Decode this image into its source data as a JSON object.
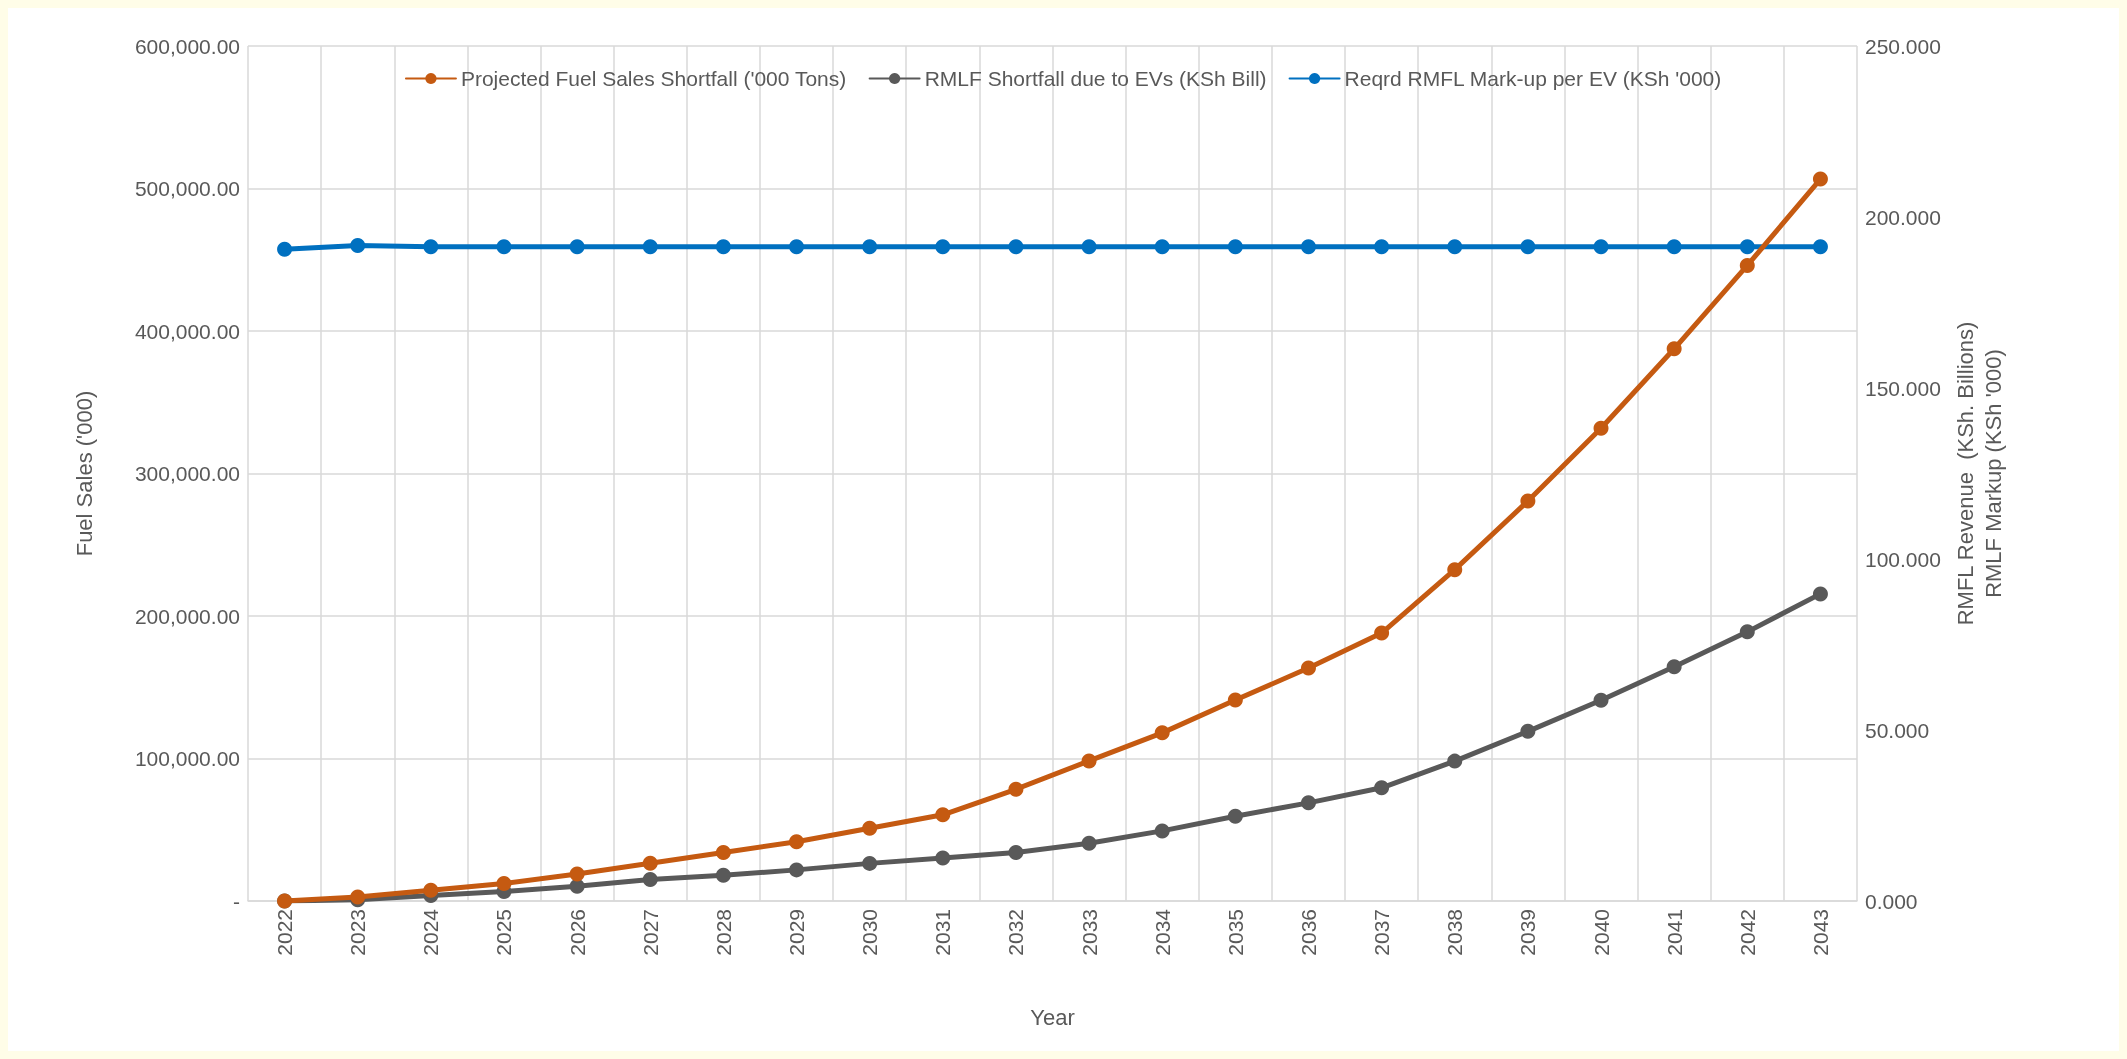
{
  "chart_data": {
    "type": "line",
    "xlabel": "Year",
    "ylabel": "Fuel Sales ('000)",
    "y2label": "RMFL Revenue  (KSh. Billions)\nRMLF Markup (KSh '000)",
    "categories": [
      "2022",
      "2023",
      "2024",
      "2025",
      "2026",
      "2027",
      "2028",
      "2029",
      "2030",
      "2031",
      "2032",
      "2033",
      "2034",
      "2035",
      "2036",
      "2037",
      "2038",
      "2039",
      "2040",
      "2041",
      "2042",
      "2043"
    ],
    "series": [
      {
        "name": "Projected Fuel Sales Shortfall ('000 Tons)",
        "color": "#c55a11",
        "values": [
          0,
          2800,
          7500,
          12300,
          18900,
          26500,
          34000,
          41600,
          51000,
          60500,
          78400,
          98300,
          118000,
          141000,
          163500,
          188000,
          232500,
          280700,
          331800,
          387500,
          446000,
          506600
        ]
      },
      {
        "name": "RMLF Shortfall due to EVs (KSh Bill)",
        "color": "#595959",
        "axis": "y2",
        "values": [
          0,
          0.4,
          1.6,
          2.8,
          4.3,
          6.3,
          7.5,
          9.1,
          11.0,
          12.6,
          14.2,
          16.9,
          20.5,
          24.8,
          28.7,
          33.1,
          40.9,
          49.6,
          58.7,
          68.5,
          78.7,
          89.8
        ]
      },
      {
        "name": "Reqrd RMFL Mark-up per EV (KSh '000)",
        "color": "#0070c0",
        "axis": "y2",
        "values": [
          190.6,
          191.7,
          191.3,
          191.3,
          191.3,
          191.3,
          191.3,
          191.3,
          191.3,
          191.3,
          191.3,
          191.3,
          191.3,
          191.3,
          191.3,
          191.3,
          191.3,
          191.3,
          191.3,
          191.3,
          191.3,
          191.3
        ]
      }
    ],
    "ylim": [
      0,
      600000
    ],
    "yticks": [
      {
        "value": 0,
        "label": "-"
      },
      {
        "value": 100000,
        "label": "100,000.00"
      },
      {
        "value": 200000,
        "label": "200,000.00"
      },
      {
        "value": 300000,
        "label": "300,000.00"
      },
      {
        "value": 400000,
        "label": "400,000.00"
      },
      {
        "value": 500000,
        "label": "500,000.00"
      },
      {
        "value": 600000,
        "label": "600,000.00"
      }
    ],
    "y2lim": [
      0,
      250
    ],
    "y2ticks": [
      {
        "value": 0,
        "label": "0.000"
      },
      {
        "value": 50,
        "label": "50.000"
      },
      {
        "value": 100,
        "label": "100.000"
      },
      {
        "value": 150,
        "label": "150.000"
      },
      {
        "value": 200,
        "label": "200.000"
      },
      {
        "value": 250,
        "label": "250.000"
      }
    ],
    "grid": true,
    "legend": "top",
    "marker": "circle",
    "line_style": "solid"
  }
}
